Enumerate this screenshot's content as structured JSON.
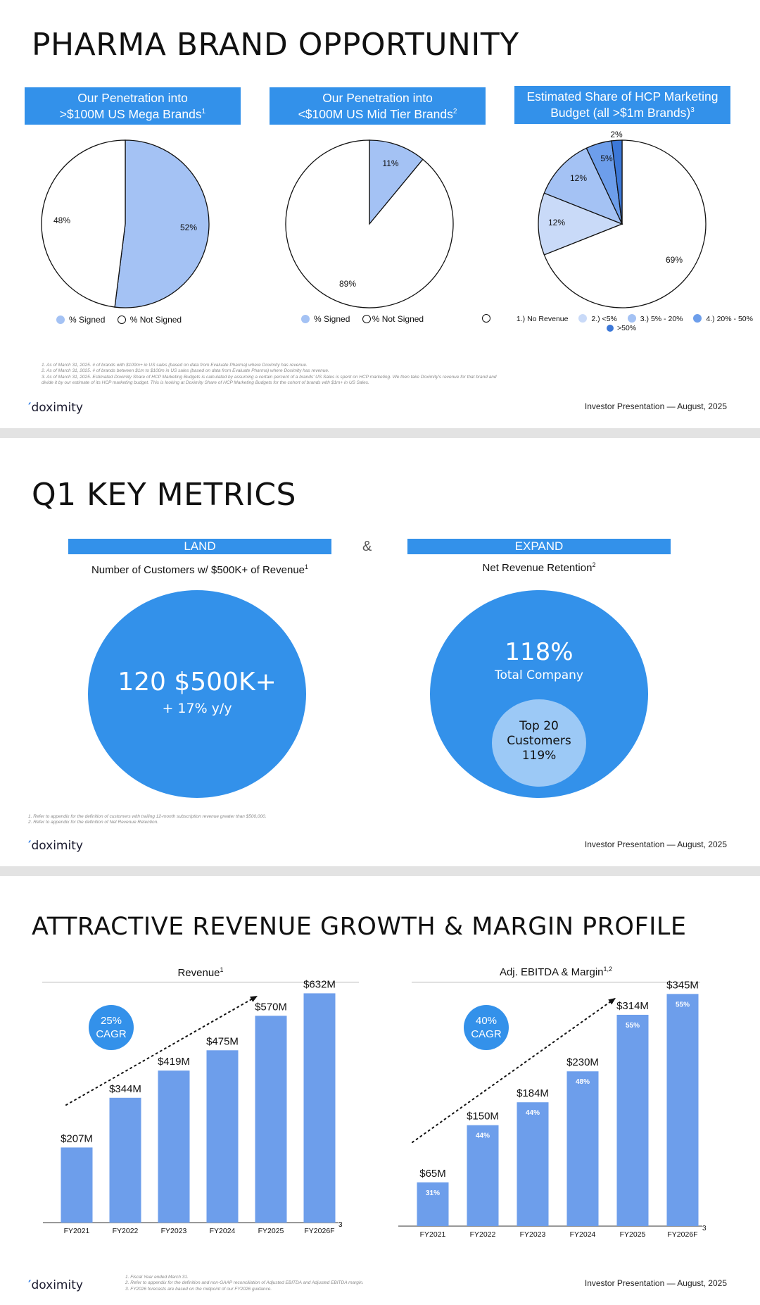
{
  "slide1": {
    "title": "PHARMA BRAND OPPORTUNITY",
    "headers": [
      {
        "line1": "Our Penetration into",
        "line2": ">$100M US Mega Brands",
        "sup": "1"
      },
      {
        "line1": "Our Penetration into",
        "line2": "<$100M US Mid Tier Brands",
        "sup": "2"
      },
      {
        "line1": "Estimated Share of HCP Marketing",
        "line2": "Budget (all >$1m Brands)",
        "sup": "3"
      }
    ],
    "legend_signed": "% Signed",
    "legend_not_signed": "% Not Signed",
    "legend3": [
      "1.) No Revenue",
      "2.) <5%",
      "3.) 5% - 20%",
      "4.) 20% - 50%",
      ">50%"
    ],
    "footnotes": [
      "1. As of March 31, 2025. # of brands with $100m+ in US sales (based on data from Evaluate Pharma) where Doximity has revenue.",
      "2. As of March 31, 2025. # of brands between $1m to $100m in US sales (based on data from Evaluate Pharma) where Doximity has revenue.",
      "3. As of March 31, 2025. Estimated Doximity Share of HCP Marketing Budgets is calculated by assuming a certain percent of a brands' US Sales is spent on HCP marketing. We then take Doximity's revenue for that brand and",
      "divide it by our estimate of its HCP marketing budget. This is looking at Doximity Share of HCP Marketing Budgets for the cohort of brands with $1m+ in US Sales."
    ],
    "logo": "doximity",
    "footer": "Investor Presentation — August, 2025"
  },
  "slide2": {
    "title": "Q1 KEY METRICS",
    "land_label": "LAND",
    "expand_label": "EXPAND",
    "ampersand": "&",
    "land_caption": "Number of Customers w/ $500K+ of Revenue",
    "land_sup": "1",
    "expand_caption": "Net Revenue Retention",
    "expand_sup": "2",
    "land_value": "120 $500K+",
    "land_growth": "+ 17% y/y",
    "nrr_value": "118%",
    "nrr_label": "Total Company",
    "top20_line1": "Top 20",
    "top20_line2": "Customers",
    "top20_value": "119%",
    "footnotes": [
      "1.    Refer to appendix for the definition of customers with trailing 12-month subscription revenue greater than $500,000.",
      "2.    Refer to appendix for the definition of Net Revenue Retention."
    ],
    "logo": "doximity",
    "footer": "Investor Presentation — August, 2025"
  },
  "slide3": {
    "title": "ATTRACTIVE REVENUE GROWTH & MARGIN PROFILE",
    "revenue_title": "Revenue",
    "revenue_sup": "1",
    "ebitda_title": "Adj. EBITDA & Margin",
    "ebitda_sup": "1,2",
    "cagr1_pct": "25%",
    "cagr1_label": "CAGR",
    "cagr2_pct": "40%",
    "cagr2_label": "CAGR",
    "page_number": "3",
    "footnotes": [
      "1. Fiscal Year ended March 31.",
      "2. Refer to appendix for the definition and non-GAAP reconciliation of Adjusted EBITDA and Adjusted EBITDA margin.",
      "3. FY2026 forecasts are based on the midpoint of our FY2026 guidance."
    ],
    "logo": "doximity",
    "footer": "Investor Presentation — August, 2025"
  },
  "colors": {
    "accent": "#3391ea",
    "pie_signed": "#a4c2f4",
    "bar": "#6d9eeb",
    "light_circle": "#9cc9f6"
  },
  "chart_data": [
    {
      "type": "pie",
      "title": "Our Penetration into >$100M US Mega Brands",
      "labels": [
        "% Signed",
        "% Not Signed"
      ],
      "values": [
        52,
        48
      ],
      "value_labels": [
        "52%",
        "48%"
      ]
    },
    {
      "type": "pie",
      "title": "Our Penetration into <$100M US Mid Tier Brands",
      "labels": [
        "% Signed",
        "% Not Signed"
      ],
      "values": [
        11,
        89
      ],
      "value_labels": [
        "11%",
        "89%"
      ]
    },
    {
      "type": "pie",
      "title": "Estimated Share of HCP Marketing Budget (all >$1m Brands)",
      "labels": [
        "1.) No Revenue",
        "2.) <5%",
        "3.) 5% - 20%",
        "4.) 20% - 50%",
        ">50%"
      ],
      "values": [
        69,
        12,
        12,
        5,
        2
      ],
      "value_labels": [
        "69%",
        "12%",
        "12%",
        "5%",
        "2%"
      ]
    },
    {
      "type": "bar",
      "title": "Revenue",
      "categories": [
        "FY2021",
        "FY2022",
        "FY2023",
        "FY2024",
        "FY2025",
        "FY2026F"
      ],
      "values": [
        207,
        344,
        419,
        475,
        570,
        632
      ],
      "value_labels": [
        "$207M",
        "$344M",
        "$419M",
        "$475M",
        "$570M",
        "$632M"
      ]
    },
    {
      "type": "bar",
      "title": "Adj. EBITDA & Margin",
      "categories": [
        "FY2021",
        "FY2022",
        "FY2023",
        "FY2024",
        "FY2025",
        "FY2026F"
      ],
      "values": [
        65,
        150,
        184,
        230,
        314,
        345
      ],
      "value_labels": [
        "$65M",
        "$150M",
        "$184M",
        "$230M",
        "$314M",
        "$345M"
      ],
      "margins": [
        "31%",
        "44%",
        "44%",
        "48%",
        "55%",
        "55%"
      ]
    }
  ]
}
